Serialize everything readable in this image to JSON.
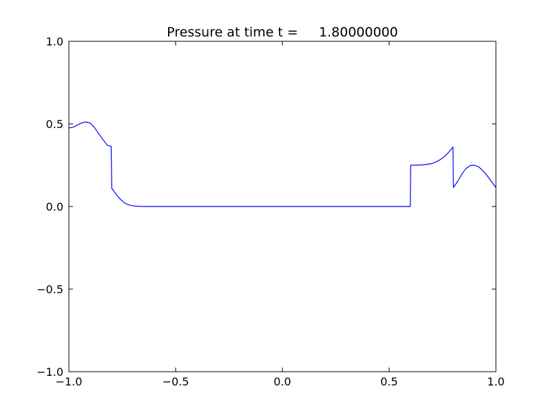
{
  "chart_data": {
    "type": "line",
    "title": "Pressure at time t =     1.80000000",
    "xlabel": "",
    "ylabel": "",
    "xlim": [
      -1.0,
      1.0
    ],
    "ylim": [
      -1.0,
      1.0
    ],
    "grid": false,
    "legend": "none",
    "x_ticks": [
      -1.0,
      -0.5,
      0.0,
      0.5,
      1.0
    ],
    "x_tick_labels": [
      "−1.0",
      "−0.5",
      "0.0",
      "0.5",
      "1.0"
    ],
    "y_ticks": [
      -1.0,
      -0.5,
      0.0,
      0.5,
      1.0
    ],
    "y_tick_labels": [
      "−1.0",
      "−0.5",
      "0.0",
      "0.5",
      "1.0"
    ],
    "series": [
      {
        "color": "#0000ff",
        "x": [
          -1.0,
          -0.98,
          -0.96,
          -0.94,
          -0.92,
          -0.9,
          -0.88,
          -0.86,
          -0.84,
          -0.82,
          -0.802,
          -0.799,
          -0.79,
          -0.78,
          -0.76,
          -0.74,
          -0.72,
          -0.7,
          -0.68,
          -0.66,
          -0.64,
          -0.62,
          -0.6,
          0.0,
          0.599,
          0.601,
          0.62,
          0.66,
          0.7,
          0.72,
          0.74,
          0.76,
          0.78,
          0.799,
          0.801,
          0.82,
          0.84,
          0.86,
          0.88,
          0.9,
          0.92,
          0.94,
          0.96,
          0.98,
          1.0
        ],
        "y": [
          0.475,
          0.48,
          0.493,
          0.506,
          0.512,
          0.505,
          0.478,
          0.44,
          0.405,
          0.37,
          0.365,
          0.11,
          0.095,
          0.075,
          0.045,
          0.022,
          0.01,
          0.004,
          0.0015,
          0.0005,
          0.0001,
          0.0,
          0.0,
          0.0,
          0.0,
          0.25,
          0.25,
          0.252,
          0.26,
          0.27,
          0.284,
          0.303,
          0.33,
          0.36,
          0.115,
          0.15,
          0.195,
          0.23,
          0.248,
          0.25,
          0.24,
          0.215,
          0.185,
          0.15,
          0.115
        ]
      }
    ]
  }
}
